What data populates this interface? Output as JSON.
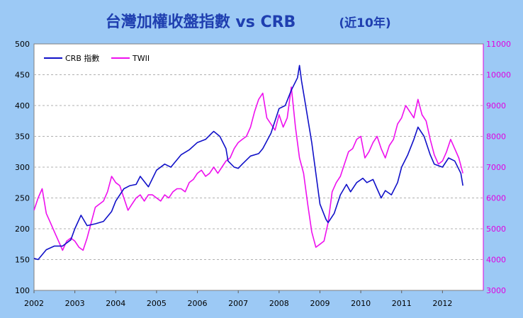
{
  "chart_data": {
    "type": "line",
    "title": "台灣加權收盤指數 vs CRB",
    "subtitle": "(近10年)",
    "x_ticks": [
      "2002",
      "2003",
      "2004",
      "2005",
      "2006",
      "2007",
      "2008",
      "2009",
      "2010",
      "2011",
      "2012"
    ],
    "x_range": [
      2002.0,
      2013.0
    ],
    "y_left": {
      "range": [
        100,
        500
      ],
      "ticks": [
        "100",
        "150",
        "200",
        "250",
        "300",
        "350",
        "400",
        "450",
        "500"
      ]
    },
    "y_right": {
      "range": [
        3000,
        11000
      ],
      "ticks": [
        "3000",
        "4000",
        "5000",
        "6000",
        "7000",
        "8000",
        "9000",
        "10000",
        "11000"
      ]
    },
    "grid": true,
    "legend_position": "top-left",
    "series": [
      {
        "name": "CRB 指數",
        "axis": "left",
        "color": "#1010c8",
        "x": [
          2002.0,
          2002.1,
          2002.3,
          2002.5,
          2002.7,
          2002.9,
          2003.0,
          2003.15,
          2003.3,
          2003.5,
          2003.7,
          2003.9,
          2004.0,
          2004.2,
          2004.35,
          2004.5,
          2004.6,
          2004.8,
          2005.0,
          2005.2,
          2005.35,
          2005.5,
          2005.6,
          2005.8,
          2006.0,
          2006.2,
          2006.35,
          2006.4,
          2006.55,
          2006.7,
          2006.75,
          2006.9,
          2007.0,
          2007.1,
          2007.3,
          2007.5,
          2007.6,
          2007.8,
          2008.0,
          2008.15,
          2008.3,
          2008.45,
          2008.5,
          2008.55,
          2008.65,
          2008.8,
          2008.9,
          2009.0,
          2009.15,
          2009.2,
          2009.35,
          2009.5,
          2009.65,
          2009.75,
          2009.9,
          2010.05,
          2010.15,
          2010.3,
          2010.4,
          2010.5,
          2010.6,
          2010.75,
          2010.9,
          2011.0,
          2011.15,
          2011.3,
          2011.4,
          2011.55,
          2011.7,
          2011.8,
          2012.0,
          2012.15,
          2012.3,
          2012.45,
          2012.5
        ],
        "y": [
          152,
          150,
          166,
          172,
          172,
          182,
          200,
          222,
          205,
          208,
          212,
          228,
          245,
          265,
          270,
          272,
          285,
          268,
          295,
          305,
          300,
          312,
          320,
          328,
          340,
          345,
          355,
          358,
          350,
          330,
          310,
          300,
          298,
          305,
          318,
          322,
          330,
          355,
          395,
          400,
          425,
          445,
          465,
          440,
          400,
          340,
          290,
          240,
          215,
          210,
          225,
          255,
          272,
          260,
          275,
          282,
          275,
          280,
          265,
          250,
          262,
          255,
          275,
          300,
          320,
          345,
          365,
          350,
          320,
          305,
          300,
          315,
          310,
          290,
          270
        ]
      },
      {
        "name": "TWII",
        "axis": "right",
        "color": "#ee10ee",
        "x": [
          2002.0,
          2002.1,
          2002.2,
          2002.3,
          2002.4,
          2002.5,
          2002.6,
          2002.7,
          2002.8,
          2002.9,
          2003.0,
          2003.1,
          2003.2,
          2003.3,
          2003.4,
          2003.5,
          2003.6,
          2003.7,
          2003.8,
          2003.9,
          2004.0,
          2004.1,
          2004.2,
          2004.3,
          2004.4,
          2004.5,
          2004.6,
          2004.7,
          2004.8,
          2004.9,
          2005.0,
          2005.1,
          2005.2,
          2005.3,
          2005.4,
          2005.5,
          2005.6,
          2005.7,
          2005.8,
          2005.9,
          2006.0,
          2006.1,
          2006.2,
          2006.3,
          2006.4,
          2006.5,
          2006.6,
          2006.7,
          2006.8,
          2006.9,
          2007.0,
          2007.1,
          2007.2,
          2007.3,
          2007.4,
          2007.5,
          2007.6,
          2007.7,
          2007.8,
          2007.9,
          2008.0,
          2008.1,
          2008.2,
          2008.3,
          2008.4,
          2008.5,
          2008.6,
          2008.7,
          2008.8,
          2008.9,
          2009.0,
          2009.1,
          2009.2,
          2009.3,
          2009.4,
          2009.5,
          2009.6,
          2009.7,
          2009.8,
          2009.9,
          2010.0,
          2010.1,
          2010.2,
          2010.3,
          2010.4,
          2010.5,
          2010.6,
          2010.7,
          2010.8,
          2010.9,
          2011.0,
          2011.1,
          2011.2,
          2011.3,
          2011.4,
          2011.5,
          2011.6,
          2011.7,
          2011.8,
          2011.9,
          2012.0,
          2012.1,
          2012.2,
          2012.3,
          2012.4,
          2012.5
        ],
        "y": [
          5600,
          6000,
          6300,
          5500,
          5200,
          4900,
          4600,
          4300,
          4600,
          4700,
          4600,
          4400,
          4300,
          4700,
          5200,
          5700,
          5800,
          5900,
          6200,
          6700,
          6500,
          6400,
          6000,
          5600,
          5800,
          6000,
          6100,
          5900,
          6100,
          6100,
          6000,
          5900,
          6100,
          6000,
          6200,
          6300,
          6300,
          6200,
          6500,
          6600,
          6800,
          6900,
          6700,
          6800,
          7000,
          6800,
          7000,
          7200,
          7300,
          7600,
          7800,
          7900,
          8000,
          8300,
          8800,
          9200,
          9400,
          8600,
          8400,
          8200,
          8700,
          8300,
          8600,
          9600,
          8300,
          7300,
          6800,
          5800,
          4900,
          4400,
          4500,
          4600,
          5200,
          6200,
          6500,
          6700,
          7100,
          7500,
          7600,
          7900,
          8000,
          7300,
          7500,
          7800,
          8000,
          7600,
          7300,
          7700,
          7900,
          8400,
          8600,
          9000,
          8800,
          8600,
          9200,
          8700,
          8500,
          7900,
          7400,
          7100,
          7200,
          7500,
          7900,
          7600,
          7300,
          6800
        ]
      }
    ]
  }
}
